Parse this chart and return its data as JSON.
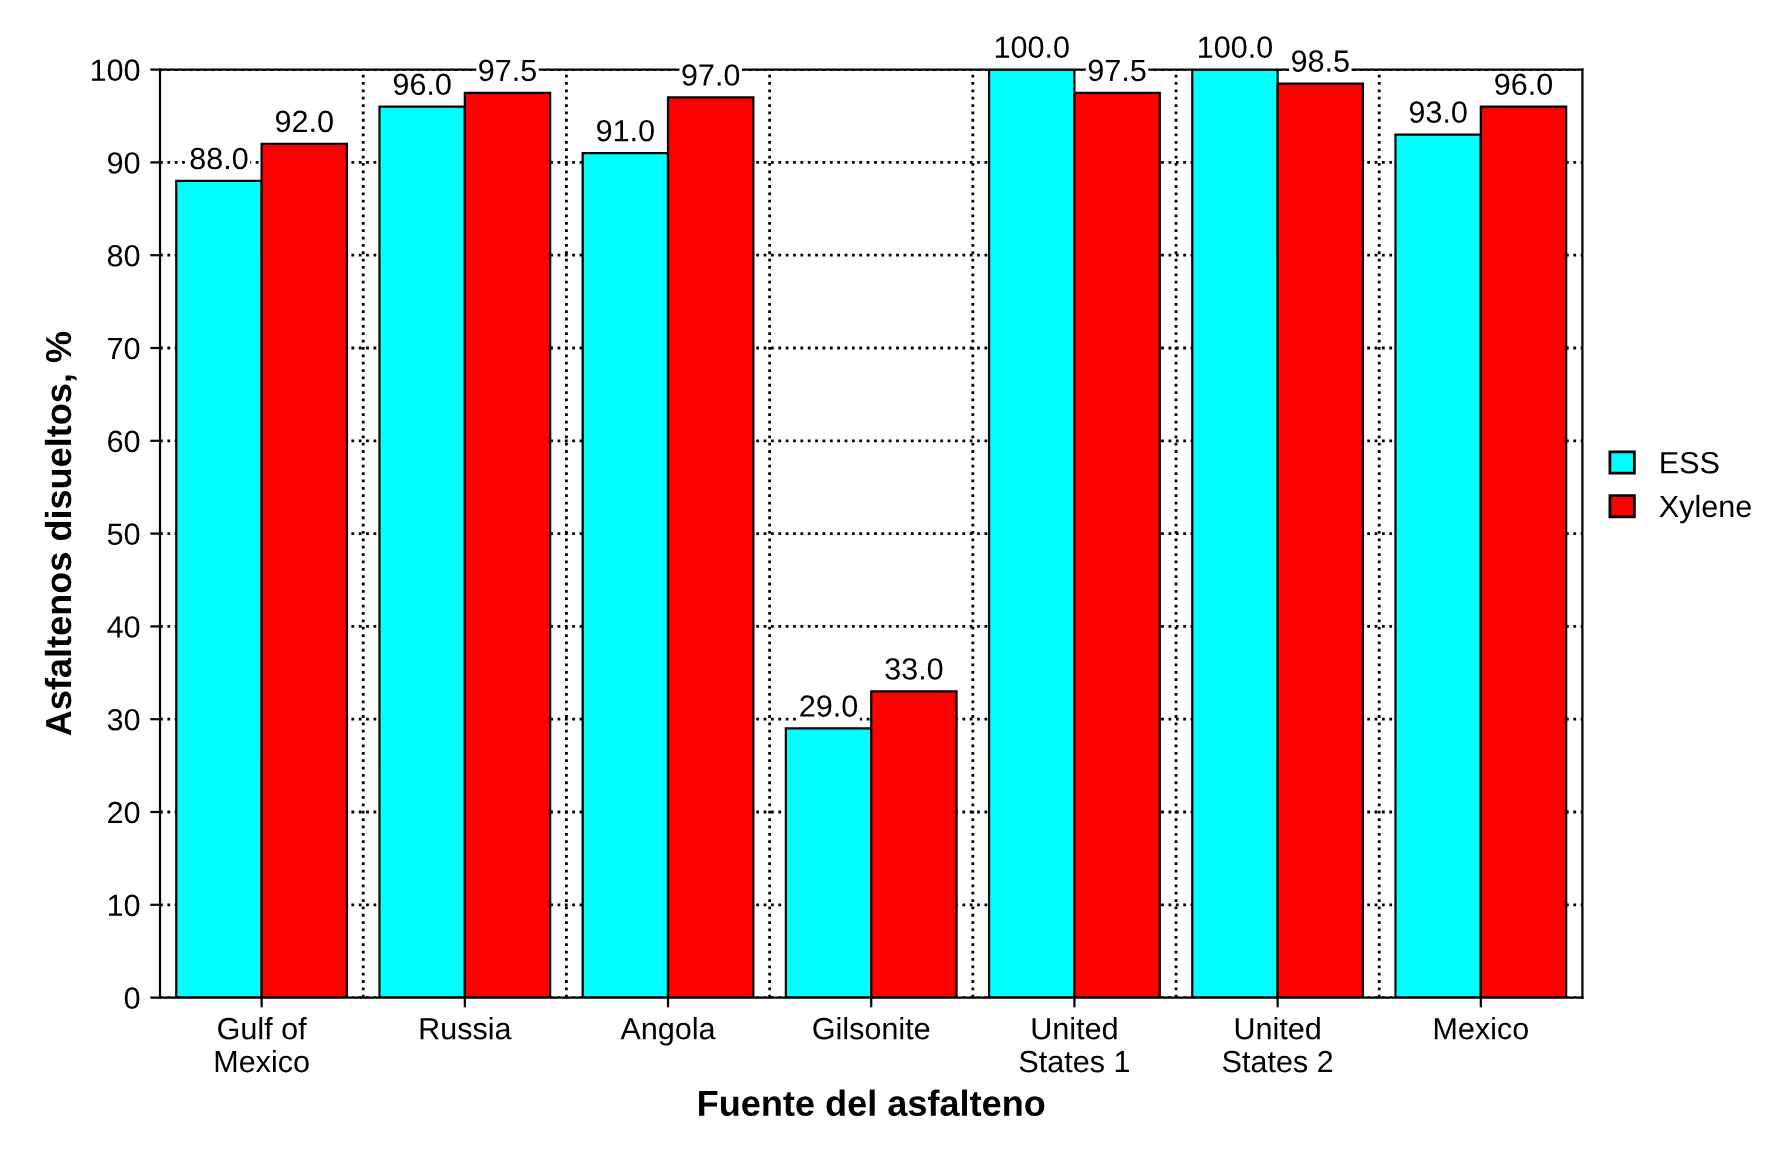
{
  "chart_data": {
    "type": "bar",
    "xlabel": "Fuente del asfalteno",
    "ylabel": "Asfaltenos disueltos, %",
    "categories": [
      "Gulf of\nMexico",
      "Russia",
      "Angola",
      "Gilsonite",
      "United\nStates 1",
      "United\nStates 2",
      "Mexico"
    ],
    "series": [
      {
        "name": "ESS",
        "color": "#00ffff",
        "values": [
          88.0,
          96.0,
          91.0,
          29.0,
          100.0,
          100.0,
          93.0
        ],
        "value_labels": [
          "88.0",
          "96.0",
          "91.0",
          "29.0",
          "100.0",
          "100.0",
          "93.0"
        ]
      },
      {
        "name": "Xylene",
        "color": "#ff0000",
        "values": [
          92.0,
          97.5,
          97.0,
          33.0,
          97.5,
          98.5,
          96.0
        ],
        "value_labels": [
          "92.0",
          "97.5",
          "97.0",
          "33.0",
          "97.5",
          "98.5",
          "96.0"
        ]
      }
    ],
    "ylim": [
      0,
      100
    ],
    "yticks": [
      0,
      10,
      20,
      30,
      40,
      50,
      60,
      70,
      80,
      90,
      100
    ],
    "grid": true,
    "legend": "right"
  }
}
